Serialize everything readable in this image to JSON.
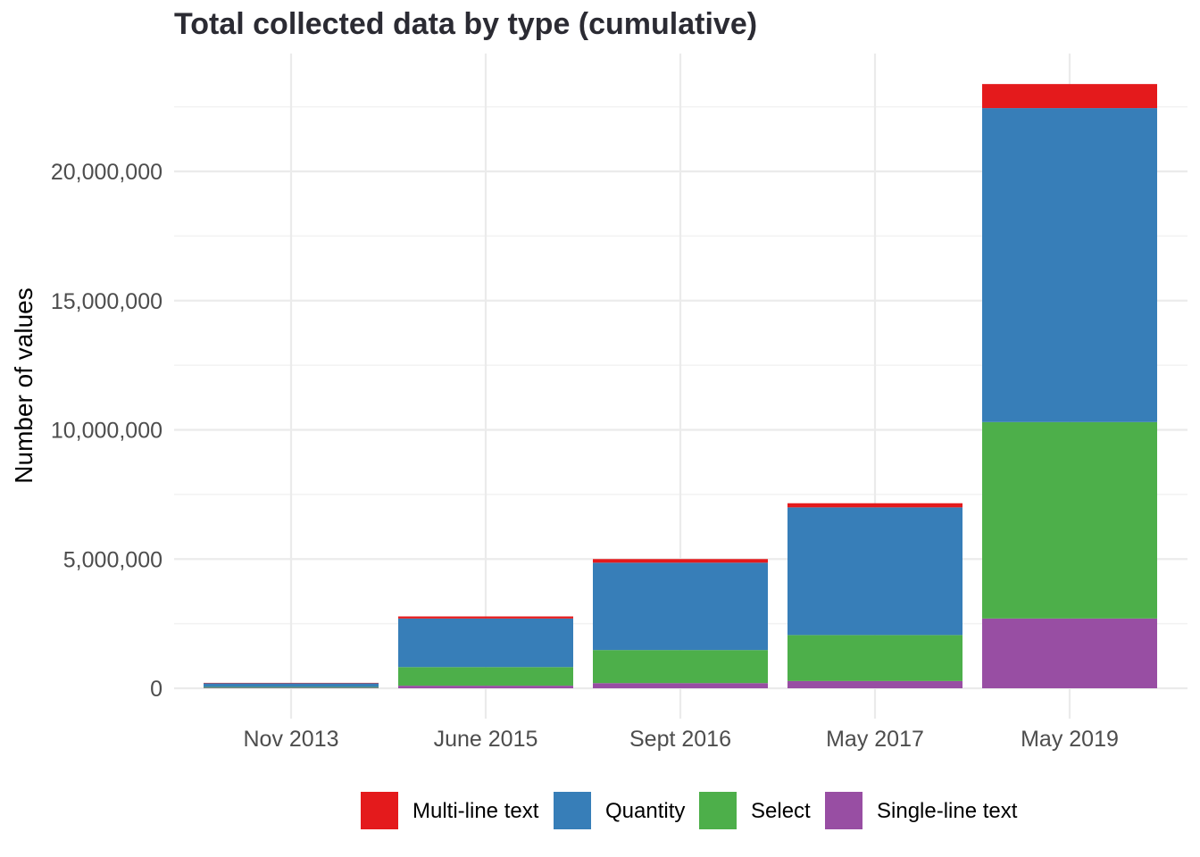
{
  "chart_data": {
    "type": "bar",
    "stacked": true,
    "title": "Total collected data by type (cumulative)",
    "xlabel": "",
    "ylabel": "Number of values",
    "categories": [
      "Nov 2013",
      "June 2015",
      "Sept 2016",
      "May 2017",
      "May 2019"
    ],
    "ylim": [
      0,
      23400000
    ],
    "yticks": [
      0,
      5000000,
      10000000,
      15000000,
      20000000
    ],
    "ytick_labels": [
      "0",
      "5,000,000",
      "10,000,000",
      "15,000,000",
      "20,000,000"
    ],
    "grid": true,
    "legend_position": "bottom",
    "series": [
      {
        "name": "Single-line text",
        "color": "#984ea3",
        "values": [
          20000,
          100000,
          200000,
          280000,
          2700000
        ]
      },
      {
        "name": "Select",
        "color": "#4daf4a",
        "values": [
          30000,
          720000,
          1280000,
          1780000,
          7600000
        ]
      },
      {
        "name": "Quantity",
        "color": "#377eb8",
        "values": [
          150000,
          1880000,
          3380000,
          4940000,
          12150000
        ]
      },
      {
        "name": "Multi-line text",
        "color": "#e41a1c",
        "values": [
          10000,
          80000,
          140000,
          160000,
          930000
        ]
      }
    ],
    "legend_order": [
      "Multi-line text",
      "Quantity",
      "Select",
      "Single-line text"
    ]
  }
}
